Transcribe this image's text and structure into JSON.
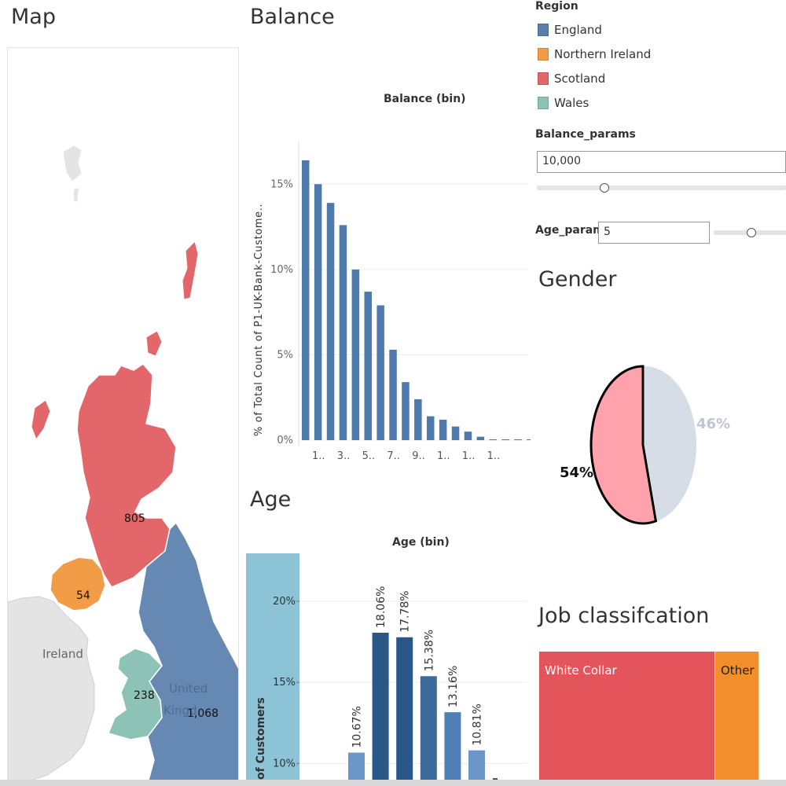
{
  "map": {
    "title": "Map",
    "labels": {
      "ireland": "Ireland",
      "united_kingdom": "United Kingdom"
    },
    "values": {
      "scotland": "805",
      "northern_ireland": "54",
      "wales": "238",
      "england": "1,068"
    }
  },
  "legend": {
    "title": "Region",
    "items": [
      {
        "label": "England",
        "color": "#5b7fac"
      },
      {
        "label": "Northern Ireland",
        "color": "#f29c48"
      },
      {
        "label": "Scotland",
        "color": "#e3676a"
      },
      {
        "label": "Wales",
        "color": "#8dc3b7"
      }
    ]
  },
  "params": {
    "balance": {
      "label": "Balance_params",
      "value": "10,000",
      "slider": 0.27
    },
    "age": {
      "label": "Age_params",
      "value": "5",
      "slider": 0.52
    }
  },
  "balance_panel": {
    "title": "Balance"
  },
  "age_panel": {
    "title": "Age"
  },
  "gender_panel": {
    "title": "Gender"
  },
  "job_panel": {
    "title": "Job classifcation"
  },
  "colors": {
    "balance_bar": "#4f79ab",
    "gender_female": "#ffa2ab",
    "gender_male": "#d6dde6",
    "white_collar": "#e3545b",
    "other": "#f28e2b",
    "age_highlight": "#8cc3d6"
  },
  "chart_data": [
    {
      "id": "balance",
      "type": "bar",
      "title": "Balance (bin)",
      "ylabel": "% of Total Count of P1-UK-Bank-Custome..",
      "ylim": [
        0,
        17.5
      ],
      "yticks": [
        "0%",
        "5%",
        "10%",
        "15%"
      ],
      "ytick_values": [
        0,
        5,
        10,
        15
      ],
      "xtick_labels": [
        "1..",
        "3..",
        "5..",
        "7..",
        "9..",
        "1..",
        "1..",
        "1.."
      ],
      "values": [
        16.4,
        15.0,
        13.9,
        12.6,
        10.0,
        8.7,
        7.9,
        5.3,
        3.4,
        2.4,
        1.4,
        1.2,
        0.8,
        0.5,
        0.2,
        0.05,
        0.05,
        0.05,
        0.05
      ]
    },
    {
      "id": "age",
      "type": "bar",
      "title": "Age (bin)",
      "ylabel": "of Customers",
      "ylim": [
        9,
        23
      ],
      "yticks": [
        "10%",
        "15%",
        "20%"
      ],
      "ytick_values": [
        10,
        15,
        20
      ],
      "values": [
        10.67,
        18.06,
        17.78,
        15.38,
        13.16,
        10.81
      ],
      "data_labels": [
        "10.67%",
        "18.06%",
        "17.78%",
        "15.38%",
        "13.16%",
        "10.81%"
      ],
      "colors": [
        "#6b96c8",
        "#2b5688",
        "#2b5688",
        "#3b6a9c",
        "#4f80b5",
        "#6b96c8"
      ]
    },
    {
      "id": "gender",
      "type": "pie",
      "series": [
        {
          "label": "54%",
          "value": 54,
          "color": "#ffa2ab"
        },
        {
          "label": "46%",
          "value": 46,
          "color": "#d6dde6"
        }
      ]
    },
    {
      "id": "job",
      "type": "bar",
      "categories": [
        "White Collar",
        "Other"
      ],
      "values": [
        80,
        20
      ]
    }
  ]
}
